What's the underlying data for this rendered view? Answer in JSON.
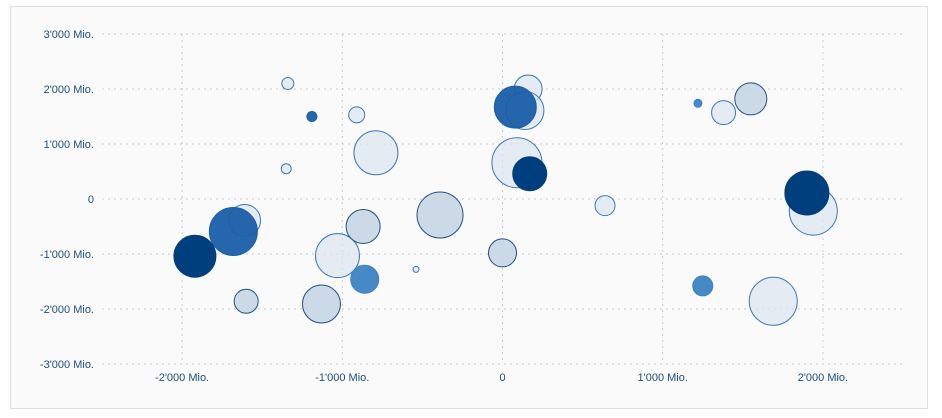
{
  "chart_data": {
    "type": "scatter",
    "title": "",
    "xlabel": "",
    "ylabel": "",
    "xlim": [
      -2500,
      2500
    ],
    "ylim": [
      -3000,
      3000
    ],
    "x_ticks": [
      -2000,
      -1000,
      0,
      1000,
      2000
    ],
    "x_tick_labels": [
      "-2'000 Mio.",
      "-1'000 Mio.",
      "0",
      "1'000 Mio.",
      "2'000 Mio."
    ],
    "y_ticks": [
      3000,
      2000,
      1000,
      0,
      -1000,
      -2000,
      -3000
    ],
    "y_tick_labels": [
      "3'000 Mio.",
      "2'000 Mio.",
      "1'000 Mio.",
      "0",
      "-1'000 Mio.",
      "-2'000 Mio.",
      "-3'000 Mio."
    ],
    "grid": true,
    "legend": "none",
    "colors": {
      "light": "#dce6f0",
      "light_stroke": "#3a78b5",
      "mid": "#c7d6e5",
      "mid_stroke": "#1f4f82",
      "blue": "#3d82c4",
      "strong": "#1a5ea8",
      "dark": "#003f7d"
    },
    "points": [
      {
        "x": -1340,
        "y": 2100,
        "size": 6,
        "tone": "light"
      },
      {
        "x": -1190,
        "y": 1500,
        "size": 5,
        "tone": "strong"
      },
      {
        "x": -910,
        "y": 1530,
        "size": 8,
        "tone": "light"
      },
      {
        "x": -1350,
        "y": 550,
        "size": 5,
        "tone": "light"
      },
      {
        "x": -790,
        "y": 840,
        "size": 22,
        "tone": "light"
      },
      {
        "x": -1610,
        "y": -390,
        "size": 16,
        "tone": "light"
      },
      {
        "x": -1680,
        "y": -590,
        "size": 24,
        "tone": "strong"
      },
      {
        "x": -1920,
        "y": -1040,
        "size": 21,
        "tone": "dark"
      },
      {
        "x": -1600,
        "y": -1860,
        "size": 12,
        "tone": "mid"
      },
      {
        "x": -1130,
        "y": -1910,
        "size": 19,
        "tone": "mid"
      },
      {
        "x": -1030,
        "y": -1030,
        "size": 22,
        "tone": "light"
      },
      {
        "x": -870,
        "y": -500,
        "size": 17,
        "tone": "mid"
      },
      {
        "x": -860,
        "y": -1460,
        "size": 14,
        "tone": "blue"
      },
      {
        "x": -540,
        "y": -1280,
        "size": 3,
        "tone": "light"
      },
      {
        "x": -390,
        "y": -290,
        "size": 23,
        "tone": "mid"
      },
      {
        "x": 0,
        "y": -980,
        "size": 14,
        "tone": "mid"
      },
      {
        "x": 160,
        "y": 2000,
        "size": 14,
        "tone": "light"
      },
      {
        "x": 140,
        "y": 1610,
        "size": 19,
        "tone": "light"
      },
      {
        "x": 80,
        "y": 1670,
        "size": 21,
        "tone": "strong"
      },
      {
        "x": 90,
        "y": 660,
        "size": 25,
        "tone": "light"
      },
      {
        "x": 170,
        "y": 460,
        "size": 17,
        "tone": "dark"
      },
      {
        "x": 640,
        "y": -120,
        "size": 10,
        "tone": "light"
      },
      {
        "x": 1220,
        "y": 1740,
        "size": 4,
        "tone": "blue"
      },
      {
        "x": 1380,
        "y": 1570,
        "size": 12,
        "tone": "light"
      },
      {
        "x": 1550,
        "y": 1820,
        "size": 16,
        "tone": "mid"
      },
      {
        "x": 1250,
        "y": -1580,
        "size": 10,
        "tone": "blue"
      },
      {
        "x": 1690,
        "y": -1860,
        "size": 24,
        "tone": "light"
      },
      {
        "x": 1940,
        "y": -220,
        "size": 24,
        "tone": "light"
      },
      {
        "x": 1900,
        "y": 110,
        "size": 22,
        "tone": "dark"
      }
    ]
  }
}
